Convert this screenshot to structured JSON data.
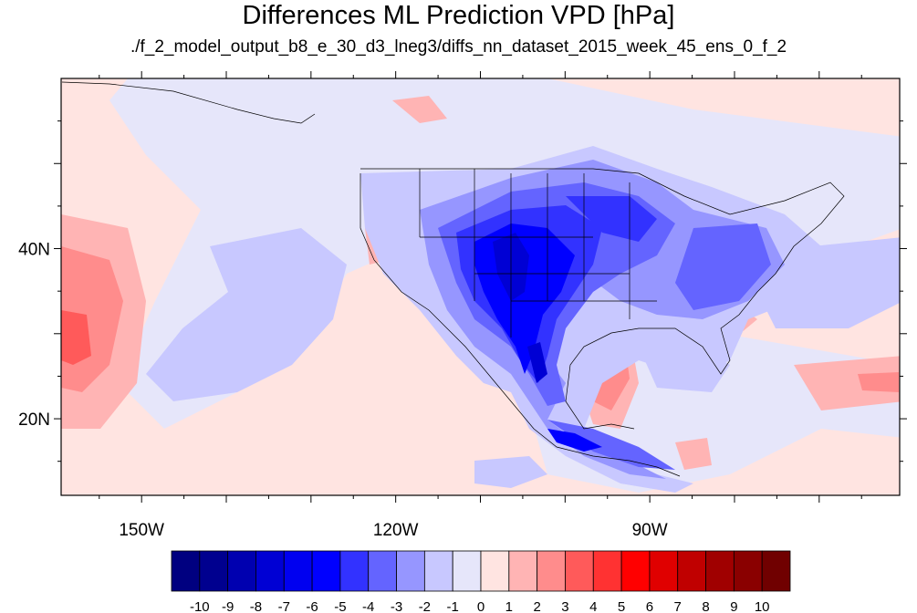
{
  "title": "Differences ML Prediction VPD [hPa]",
  "subtitle": "./f_2_model_output_b8_e_30_d3_lneg3/diffs_nn_dataset_2015_week_45_ens_0_f_2",
  "map": {
    "lat_ticks": [
      {
        "label": "40N",
        "lat": 40
      },
      {
        "label": "20N",
        "lat": 20
      }
    ],
    "lon_ticks": [
      {
        "label": "150W",
        "lon": -150
      },
      {
        "label": "120W",
        "lon": -120
      },
      {
        "label": "90W",
        "lon": -90
      }
    ],
    "extent": {
      "lon_min": -159.5,
      "lon_max": -60.5,
      "lat_min": 11,
      "lat_max": 60
    }
  },
  "colorbar": {
    "labels": [
      "-10",
      "-9",
      "-8",
      "-7",
      "-6",
      "-5",
      "-4",
      "-3",
      "-2",
      "-1",
      "0",
      "1",
      "2",
      "3",
      "4",
      "5",
      "6",
      "7",
      "8",
      "9",
      "10"
    ],
    "colors": [
      "#000080",
      "#00008f",
      "#0000b0",
      "#0000d4",
      "#0000f0",
      "#0000ff",
      "#3232ff",
      "#6464ff",
      "#9696ff",
      "#c8c8ff",
      "#e6e6fa",
      "#ffe4e1",
      "#ffb4b4",
      "#ff8c8c",
      "#ff5a5a",
      "#ff3232",
      "#ff0000",
      "#e00000",
      "#c00000",
      "#a00000",
      "#8a0000",
      "#700000"
    ]
  }
}
